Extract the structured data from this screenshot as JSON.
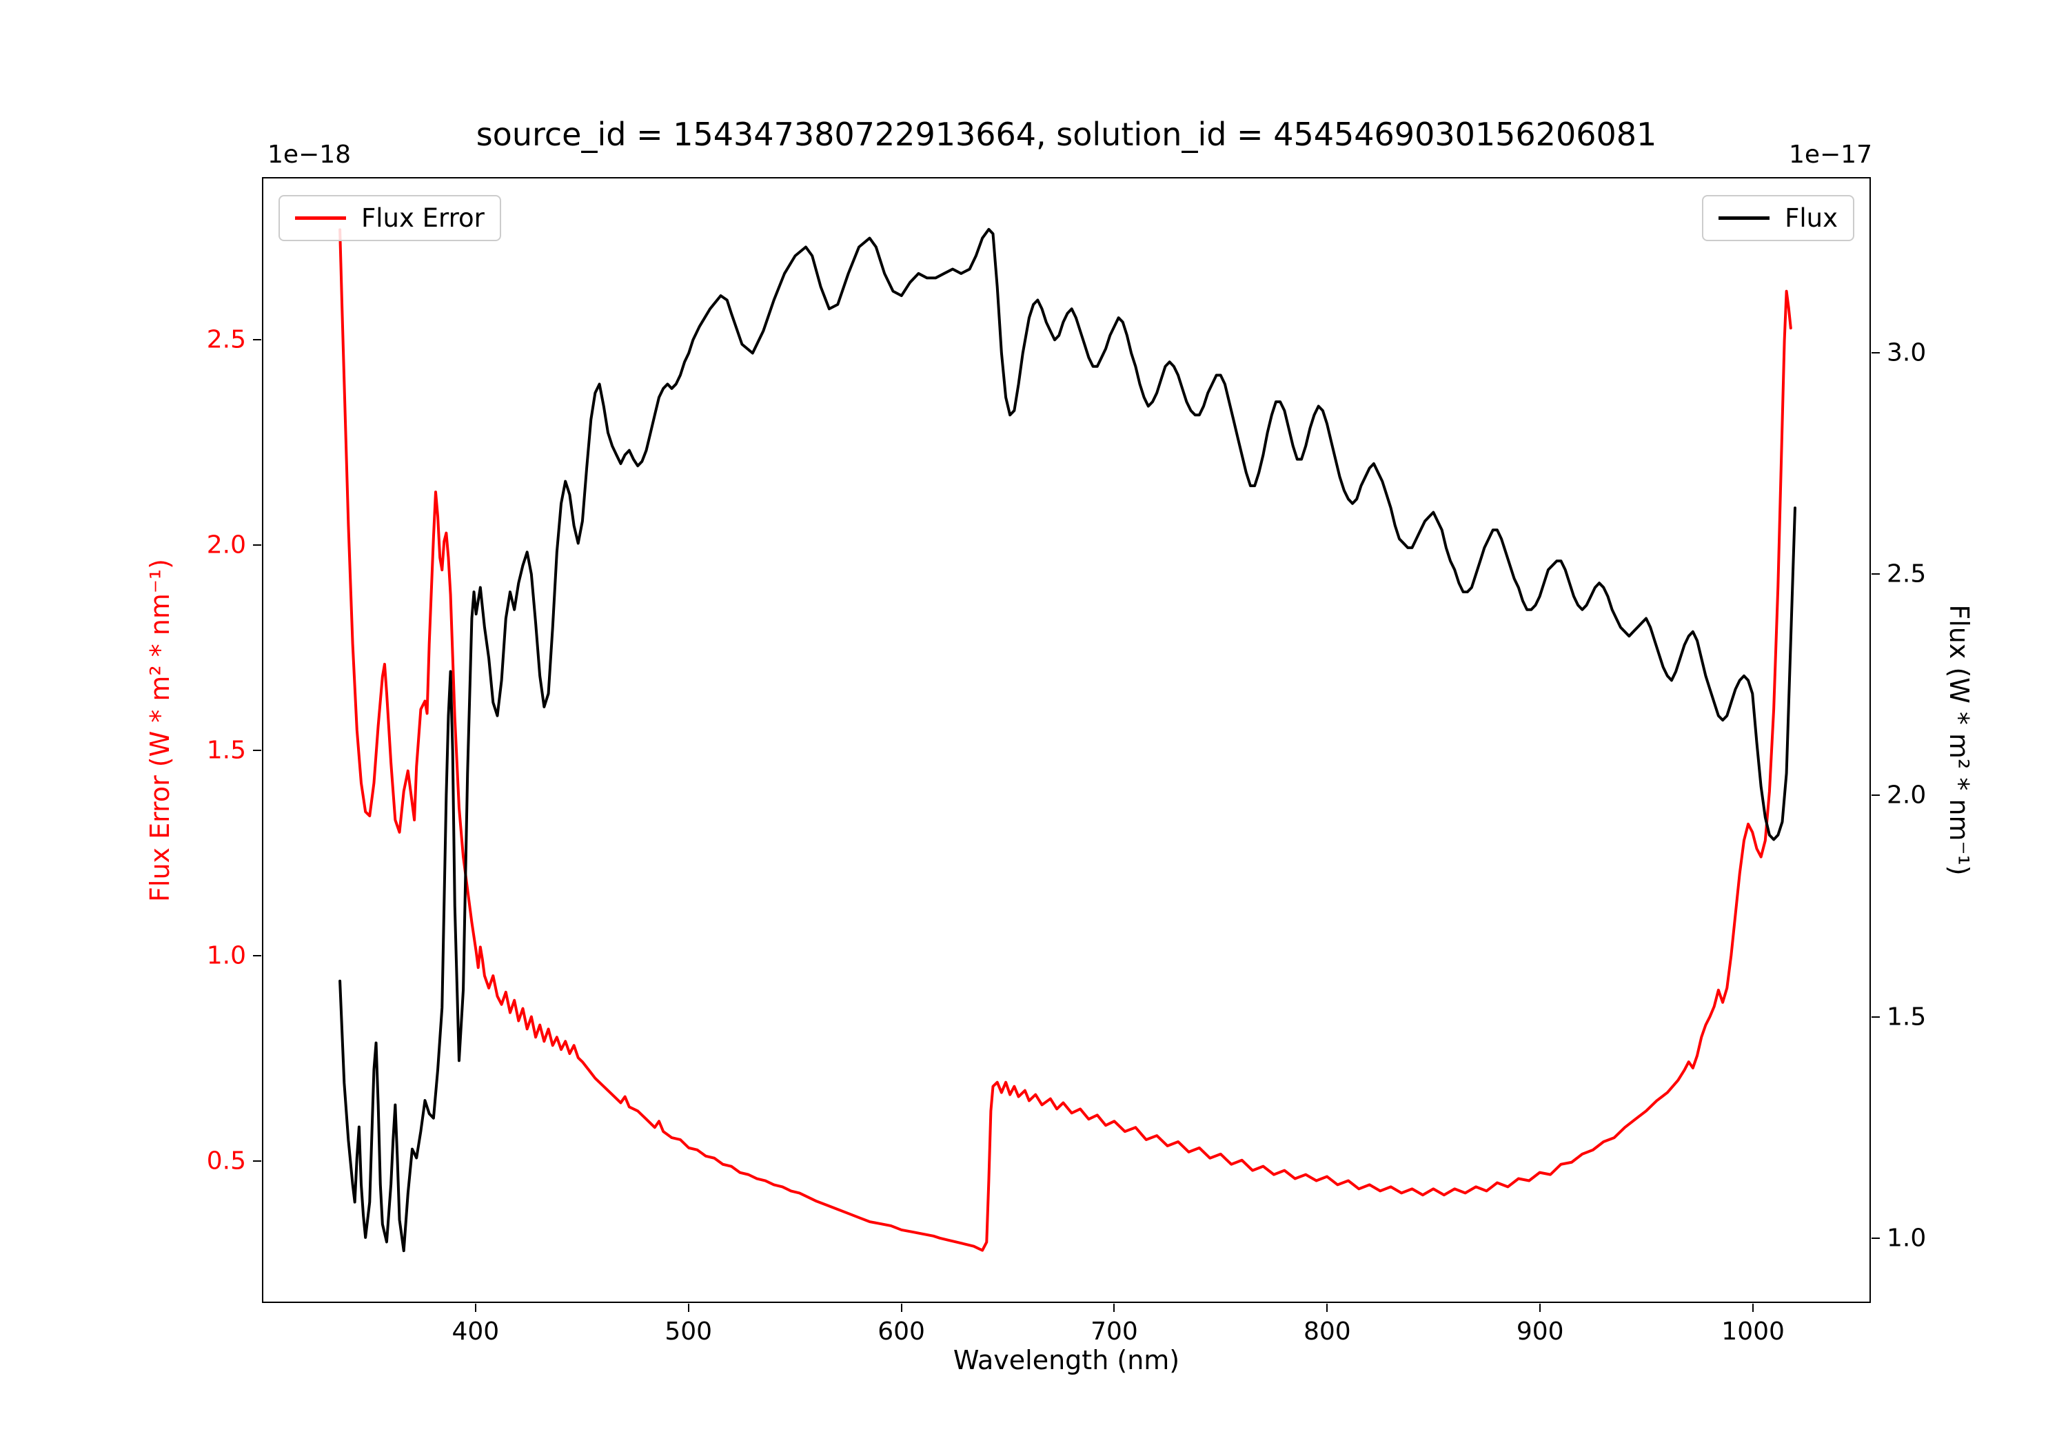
{
  "chart_data": {
    "type": "line",
    "title": "source_id = 154347380722913664, solution_id = 4545469030156206081",
    "xlabel": "Wavelength (nm)",
    "ylabel_left": "Flux Error (W * m² * nm⁻¹)",
    "ylabel_right": "Flux (W * m² * nm⁻¹)",
    "offset_left": "1e−18",
    "offset_right": "1e−17",
    "grid": false,
    "legend_positions": [
      "upper left",
      "upper right"
    ],
    "xlim": [
      300,
      1055
    ],
    "ylim_left": [
      0.155,
      2.895
    ],
    "ylim_right": [
      0.855,
      3.395
    ],
    "x_tick_values": [
      400,
      500,
      600,
      700,
      800,
      900,
      1000
    ],
    "x_tick_labels": [
      "400",
      "500",
      "600",
      "700",
      "800",
      "900",
      "1000"
    ],
    "y_left_tick_values": [
      0.5,
      1.0,
      1.5,
      2.0,
      2.5
    ],
    "y_left_tick_labels": [
      "0.5",
      "1.0",
      "1.5",
      "2.0",
      "2.5"
    ],
    "y_right_tick_values": [
      1.0,
      1.5,
      2.0,
      2.5,
      3.0
    ],
    "y_right_tick_labels": [
      "1.0",
      "1.5",
      "2.0",
      "2.5",
      "3.0"
    ],
    "series": [
      {
        "name": "Flux Error",
        "color": "#ff0000",
        "axis": "left",
        "scale_note": "values in 1e−18",
        "x": [
          336,
          337,
          338,
          340,
          342,
          344,
          346,
          348,
          350,
          352,
          354,
          356,
          357,
          358,
          360,
          362,
          364,
          366,
          368,
          370,
          371,
          372,
          374,
          376,
          377,
          378,
          380,
          381,
          382,
          383,
          384,
          385,
          386,
          387,
          388,
          390,
          392,
          394,
          396,
          398,
          400,
          401,
          402,
          403,
          404,
          406,
          408,
          410,
          412,
          414,
          416,
          418,
          420,
          422,
          424,
          426,
          428,
          430,
          432,
          434,
          436,
          438,
          440,
          442,
          444,
          446,
          448,
          450,
          453,
          456,
          460,
          464,
          468,
          470,
          472,
          476,
          480,
          484,
          486,
          488,
          492,
          496,
          500,
          504,
          508,
          512,
          516,
          520,
          524,
          528,
          532,
          536,
          540,
          544,
          548,
          552,
          556,
          560,
          565,
          570,
          575,
          580,
          585,
          590,
          595,
          600,
          605,
          610,
          615,
          618,
          622,
          626,
          630,
          634,
          636,
          638,
          640,
          641,
          642,
          643,
          645,
          647,
          649,
          651,
          653,
          655,
          658,
          660,
          663,
          666,
          670,
          673,
          676,
          680,
          684,
          688,
          692,
          696,
          700,
          705,
          710,
          715,
          720,
          725,
          730,
          735,
          740,
          745,
          750,
          755,
          760,
          765,
          770,
          775,
          780,
          785,
          790,
          795,
          800,
          805,
          810,
          815,
          820,
          825,
          830,
          835,
          840,
          845,
          850,
          855,
          860,
          865,
          870,
          875,
          880,
          885,
          890,
          895,
          900,
          905,
          910,
          915,
          920,
          925,
          930,
          935,
          940,
          945,
          950,
          955,
          960,
          965,
          968,
          970,
          972,
          974,
          976,
          978,
          980,
          982,
          984,
          985,
          986,
          988,
          990,
          992,
          994,
          996,
          998,
          1000,
          1002,
          1004,
          1006,
          1008,
          1010,
          1012,
          1014,
          1015,
          1016,
          1017,
          1018
        ],
        "y": [
          2.77,
          2.58,
          2.4,
          2.05,
          1.76,
          1.55,
          1.42,
          1.35,
          1.34,
          1.42,
          1.56,
          1.68,
          1.71,
          1.64,
          1.47,
          1.33,
          1.3,
          1.4,
          1.45,
          1.37,
          1.33,
          1.46,
          1.6,
          1.62,
          1.59,
          1.76,
          2.02,
          2.13,
          2.07,
          1.97,
          1.94,
          2.01,
          2.03,
          1.97,
          1.88,
          1.58,
          1.36,
          1.24,
          1.16,
          1.08,
          1.01,
          0.97,
          1.02,
          0.99,
          0.95,
          0.92,
          0.95,
          0.9,
          0.88,
          0.91,
          0.86,
          0.89,
          0.84,
          0.87,
          0.82,
          0.85,
          0.8,
          0.83,
          0.79,
          0.82,
          0.78,
          0.8,
          0.77,
          0.79,
          0.76,
          0.78,
          0.75,
          0.74,
          0.72,
          0.7,
          0.68,
          0.66,
          0.64,
          0.655,
          0.63,
          0.62,
          0.6,
          0.58,
          0.595,
          0.57,
          0.555,
          0.55,
          0.53,
          0.525,
          0.51,
          0.505,
          0.49,
          0.485,
          0.47,
          0.465,
          0.455,
          0.45,
          0.44,
          0.435,
          0.425,
          0.42,
          0.41,
          0.4,
          0.39,
          0.38,
          0.37,
          0.36,
          0.35,
          0.345,
          0.34,
          0.33,
          0.325,
          0.32,
          0.315,
          0.31,
          0.305,
          0.3,
          0.295,
          0.29,
          0.285,
          0.28,
          0.3,
          0.45,
          0.62,
          0.68,
          0.69,
          0.665,
          0.69,
          0.66,
          0.68,
          0.655,
          0.67,
          0.645,
          0.66,
          0.635,
          0.65,
          0.625,
          0.64,
          0.615,
          0.625,
          0.6,
          0.61,
          0.585,
          0.595,
          0.57,
          0.58,
          0.55,
          0.56,
          0.535,
          0.545,
          0.52,
          0.53,
          0.505,
          0.515,
          0.49,
          0.5,
          0.475,
          0.485,
          0.465,
          0.475,
          0.455,
          0.465,
          0.45,
          0.46,
          0.44,
          0.45,
          0.43,
          0.44,
          0.425,
          0.435,
          0.42,
          0.43,
          0.415,
          0.43,
          0.415,
          0.43,
          0.42,
          0.435,
          0.425,
          0.445,
          0.435,
          0.455,
          0.45,
          0.47,
          0.465,
          0.49,
          0.495,
          0.515,
          0.525,
          0.545,
          0.555,
          0.58,
          0.6,
          0.62,
          0.645,
          0.665,
          0.695,
          0.72,
          0.74,
          0.725,
          0.755,
          0.8,
          0.83,
          0.85,
          0.875,
          0.915,
          0.9,
          0.885,
          0.92,
          1.0,
          1.1,
          1.2,
          1.28,
          1.32,
          1.3,
          1.26,
          1.24,
          1.28,
          1.4,
          1.6,
          1.9,
          2.3,
          2.5,
          2.62,
          2.58,
          2.53
        ]
      },
      {
        "name": "Flux",
        "color": "#000000",
        "axis": "right",
        "scale_note": "values in 1e−17",
        "x": [
          336,
          338,
          340,
          342,
          343,
          344,
          345,
          346,
          347,
          348,
          350,
          352,
          353,
          354,
          355,
          356,
          358,
          360,
          361,
          362,
          363,
          364,
          366,
          368,
          370,
          372,
          374,
          376,
          378,
          380,
          382,
          384,
          386,
          387,
          388,
          389,
          390,
          392,
          394,
          396,
          398,
          399,
          400,
          402,
          404,
          406,
          408,
          410,
          412,
          414,
          416,
          418,
          420,
          422,
          424,
          426,
          428,
          430,
          432,
          434,
          436,
          438,
          440,
          442,
          444,
          446,
          448,
          450,
          452,
          454,
          456,
          458,
          460,
          462,
          464,
          466,
          468,
          470,
          472,
          474,
          476,
          478,
          480,
          482,
          484,
          486,
          488,
          490,
          492,
          494,
          496,
          498,
          500,
          502,
          505,
          510,
          515,
          518,
          520,
          525,
          530,
          535,
          540,
          545,
          550,
          555,
          558,
          562,
          566,
          570,
          575,
          580,
          585,
          588,
          592,
          596,
          600,
          604,
          608,
          612,
          616,
          620,
          624,
          628,
          632,
          635,
          638,
          641,
          643,
          645,
          647,
          649,
          651,
          653,
          655,
          657,
          660,
          662,
          664,
          666,
          668,
          670,
          672,
          674,
          676,
          678,
          680,
          682,
          684,
          686,
          688,
          690,
          692,
          694,
          696,
          698,
          700,
          702,
          704,
          706,
          708,
          710,
          712,
          714,
          716,
          718,
          720,
          722,
          724,
          726,
          728,
          730,
          732,
          734,
          736,
          738,
          740,
          742,
          744,
          746,
          748,
          750,
          752,
          754,
          756,
          758,
          760,
          762,
          764,
          766,
          768,
          770,
          772,
          774,
          776,
          778,
          780,
          782,
          784,
          786,
          788,
          790,
          792,
          794,
          796,
          798,
          800,
          802,
          804,
          806,
          808,
          810,
          812,
          814,
          816,
          818,
          820,
          822,
          824,
          826,
          828,
          830,
          832,
          834,
          836,
          838,
          840,
          842,
          844,
          846,
          848,
          850,
          852,
          854,
          856,
          858,
          860,
          862,
          864,
          866,
          868,
          870,
          872,
          874,
          876,
          878,
          880,
          882,
          884,
          886,
          888,
          890,
          892,
          894,
          896,
          898,
          900,
          902,
          904,
          906,
          908,
          910,
          912,
          914,
          916,
          918,
          920,
          922,
          924,
          926,
          928,
          930,
          932,
          934,
          936,
          938,
          940,
          942,
          944,
          946,
          948,
          950,
          952,
          954,
          956,
          958,
          960,
          962,
          964,
          966,
          968,
          970,
          972,
          974,
          976,
          978,
          980,
          982,
          984,
          986,
          988,
          990,
          992,
          994,
          996,
          998,
          1000,
          1002,
          1004,
          1006,
          1008,
          1010,
          1012,
          1014,
          1016,
          1018,
          1020
        ],
        "y": [
          1.58,
          1.35,
          1.22,
          1.12,
          1.08,
          1.18,
          1.25,
          1.12,
          1.05,
          1.0,
          1.08,
          1.38,
          1.44,
          1.3,
          1.12,
          1.03,
          0.99,
          1.12,
          1.22,
          1.3,
          1.18,
          1.04,
          0.97,
          1.1,
          1.2,
          1.18,
          1.24,
          1.31,
          1.28,
          1.27,
          1.38,
          1.52,
          2.0,
          2.18,
          2.28,
          2.1,
          1.75,
          1.4,
          1.56,
          2.05,
          2.4,
          2.46,
          2.41,
          2.47,
          2.38,
          2.31,
          2.21,
          2.18,
          2.26,
          2.4,
          2.46,
          2.42,
          2.48,
          2.52,
          2.55,
          2.5,
          2.39,
          2.27,
          2.2,
          2.23,
          2.38,
          2.55,
          2.66,
          2.71,
          2.68,
          2.61,
          2.57,
          2.62,
          2.74,
          2.85,
          2.91,
          2.93,
          2.88,
          2.82,
          2.79,
          2.77,
          2.75,
          2.77,
          2.78,
          2.76,
          2.745,
          2.755,
          2.78,
          2.82,
          2.86,
          2.9,
          2.92,
          2.93,
          2.92,
          2.93,
          2.95,
          2.98,
          3.0,
          3.03,
          3.06,
          3.1,
          3.13,
          3.12,
          3.09,
          3.02,
          3.0,
          3.05,
          3.12,
          3.18,
          3.22,
          3.24,
          3.22,
          3.15,
          3.1,
          3.11,
          3.18,
          3.24,
          3.26,
          3.24,
          3.18,
          3.14,
          3.13,
          3.16,
          3.18,
          3.17,
          3.17,
          3.18,
          3.19,
          3.18,
          3.19,
          3.22,
          3.26,
          3.28,
          3.27,
          3.15,
          3.0,
          2.9,
          2.86,
          2.87,
          2.93,
          3.0,
          3.08,
          3.11,
          3.12,
          3.1,
          3.07,
          3.05,
          3.03,
          3.04,
          3.07,
          3.09,
          3.1,
          3.08,
          3.05,
          3.02,
          2.99,
          2.97,
          2.97,
          2.99,
          3.01,
          3.04,
          3.06,
          3.08,
          3.07,
          3.04,
          3.0,
          2.97,
          2.93,
          2.9,
          2.88,
          2.89,
          2.91,
          2.94,
          2.97,
          2.98,
          2.97,
          2.95,
          2.92,
          2.89,
          2.87,
          2.86,
          2.86,
          2.88,
          2.91,
          2.93,
          2.95,
          2.95,
          2.93,
          2.89,
          2.85,
          2.81,
          2.77,
          2.73,
          2.7,
          2.7,
          2.73,
          2.77,
          2.82,
          2.86,
          2.89,
          2.89,
          2.87,
          2.83,
          2.79,
          2.76,
          2.76,
          2.79,
          2.83,
          2.86,
          2.88,
          2.87,
          2.84,
          2.8,
          2.76,
          2.72,
          2.69,
          2.67,
          2.66,
          2.67,
          2.7,
          2.72,
          2.74,
          2.75,
          2.73,
          2.71,
          2.68,
          2.65,
          2.61,
          2.58,
          2.57,
          2.56,
          2.56,
          2.58,
          2.6,
          2.62,
          2.63,
          2.64,
          2.62,
          2.6,
          2.56,
          2.53,
          2.51,
          2.48,
          2.46,
          2.46,
          2.47,
          2.5,
          2.53,
          2.56,
          2.58,
          2.6,
          2.6,
          2.58,
          2.55,
          2.52,
          2.49,
          2.47,
          2.44,
          2.42,
          2.42,
          2.43,
          2.45,
          2.48,
          2.51,
          2.52,
          2.53,
          2.53,
          2.51,
          2.48,
          2.45,
          2.43,
          2.42,
          2.43,
          2.45,
          2.47,
          2.48,
          2.47,
          2.45,
          2.42,
          2.4,
          2.38,
          2.37,
          2.36,
          2.37,
          2.38,
          2.39,
          2.4,
          2.38,
          2.35,
          2.32,
          2.29,
          2.27,
          2.26,
          2.28,
          2.31,
          2.34,
          2.36,
          2.37,
          2.35,
          2.31,
          2.27,
          2.24,
          2.21,
          2.18,
          2.17,
          2.18,
          2.21,
          2.24,
          2.26,
          2.27,
          2.26,
          2.23,
          2.12,
          2.02,
          1.95,
          1.91,
          1.9,
          1.91,
          1.94,
          2.05,
          2.35,
          2.65
        ]
      }
    ]
  }
}
